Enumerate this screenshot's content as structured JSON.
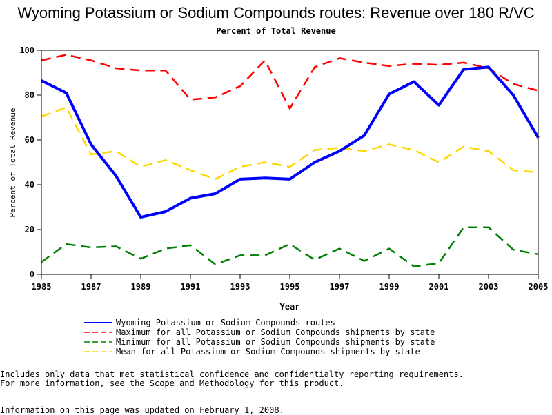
{
  "title": "Wyoming Potassium or Sodium Compounds routes: Revenue over 180 R/VC",
  "subtitle": "Percent of Total Revenue",
  "notes": [
    "Includes only data that met statistical confidence and confidentialty reporting requirements.",
    "For more information, see the Scope and Methodology for this product.",
    "Information on this page was updated on February 1, 2008."
  ],
  "chart_data": {
    "type": "line",
    "xlabel": "Year",
    "ylabel": "Percent of Total Revenue",
    "xlim": [
      1985,
      2005
    ],
    "ylim": [
      0,
      100
    ],
    "xticks": [
      1985,
      1987,
      1989,
      1991,
      1993,
      1995,
      1997,
      1999,
      2001,
      2003,
      2005
    ],
    "yticks": [
      0,
      20,
      40,
      60,
      80,
      100
    ],
    "grid": false,
    "legend_position": "bottom",
    "x": [
      1985,
      1986,
      1987,
      1988,
      1989,
      1990,
      1991,
      1992,
      1993,
      1994,
      1995,
      1996,
      1997,
      1998,
      1999,
      2000,
      2001,
      2002,
      2003,
      2004,
      2005
    ],
    "series": [
      {
        "name": "Wyoming Potassium or Sodium Compounds routes",
        "color": "#0000ff",
        "style": "solid",
        "values": [
          86.5,
          81,
          58,
          44,
          25.5,
          28,
          34,
          36,
          42.5,
          43,
          42.5,
          50,
          55,
          62,
          80.5,
          86,
          75.5,
          91.5,
          92.5,
          80,
          61
        ]
      },
      {
        "name": "Maximum for all Potassium or Sodium Compounds shipments by state",
        "color": "#ff0000",
        "style": "dashed",
        "values": [
          95.5,
          98,
          95.5,
          92,
          91,
          91,
          78,
          79,
          84,
          95.5,
          74,
          92.5,
          96.5,
          94.5,
          93,
          94,
          93.5,
          94.5,
          92,
          85,
          82
        ]
      },
      {
        "name": "Minimum for all Potassium or Sodium Compounds shipments by state",
        "color": "#008000",
        "style": "dashed",
        "values": [
          5.5,
          13.5,
          12,
          12.5,
          7,
          11.5,
          13,
          4.5,
          8.5,
          8.5,
          13.5,
          6.5,
          11.5,
          6,
          11.5,
          3.5,
          5,
          21,
          21,
          11,
          9
        ]
      },
      {
        "name": "Mean for all Potassium or Sodium Compounds shipments by state",
        "color": "#ffd700",
        "style": "dashed",
        "values": [
          70.5,
          74.5,
          53.5,
          55,
          48,
          51,
          46.5,
          42.5,
          48,
          50,
          48,
          55.5,
          56.5,
          55,
          58,
          55.5,
          50,
          57,
          55,
          46.5,
          45.5
        ]
      }
    ]
  }
}
